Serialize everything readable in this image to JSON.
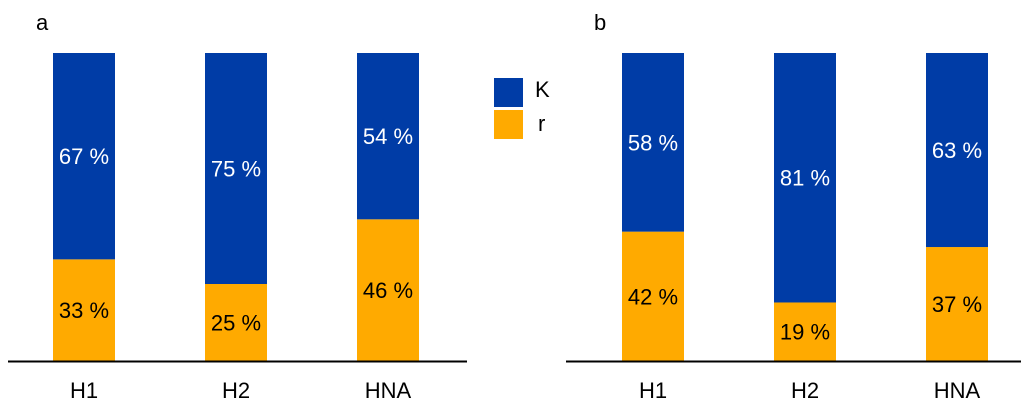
{
  "chart_data": [
    {
      "type": "bar",
      "stacked": true,
      "normalized": true,
      "panel": "a",
      "categories": [
        "H1",
        "H2",
        "HNA"
      ],
      "series": [
        {
          "name": "r",
          "values": [
            33,
            25,
            46
          ],
          "labels": [
            "33 %",
            "25 %",
            "46 %"
          ]
        },
        {
          "name": "K",
          "values": [
            67,
            75,
            54
          ],
          "labels": [
            "67 %",
            "75 %",
            "54 %"
          ]
        }
      ],
      "ylim": [
        0,
        100
      ],
      "grid": false
    },
    {
      "type": "bar",
      "stacked": true,
      "normalized": true,
      "panel": "b",
      "categories": [
        "H1",
        "H2",
        "HNA"
      ],
      "series": [
        {
          "name": "r",
          "values": [
            42,
            19,
            37
          ],
          "labels": [
            "42 %",
            "19 %",
            "37 %"
          ]
        },
        {
          "name": "K",
          "values": [
            58,
            81,
            63
          ],
          "labels": [
            "58 %",
            "81 %",
            "63 %"
          ]
        }
      ],
      "ylim": [
        0,
        100
      ],
      "grid": false
    }
  ],
  "legend": {
    "placement": "between panels, top",
    "items": [
      {
        "name": "K",
        "color": "#003CA6"
      },
      {
        "name": "r",
        "color": "#FFAA00"
      }
    ]
  },
  "colors": {
    "K": "#003CA6",
    "r": "#FFAA00"
  }
}
